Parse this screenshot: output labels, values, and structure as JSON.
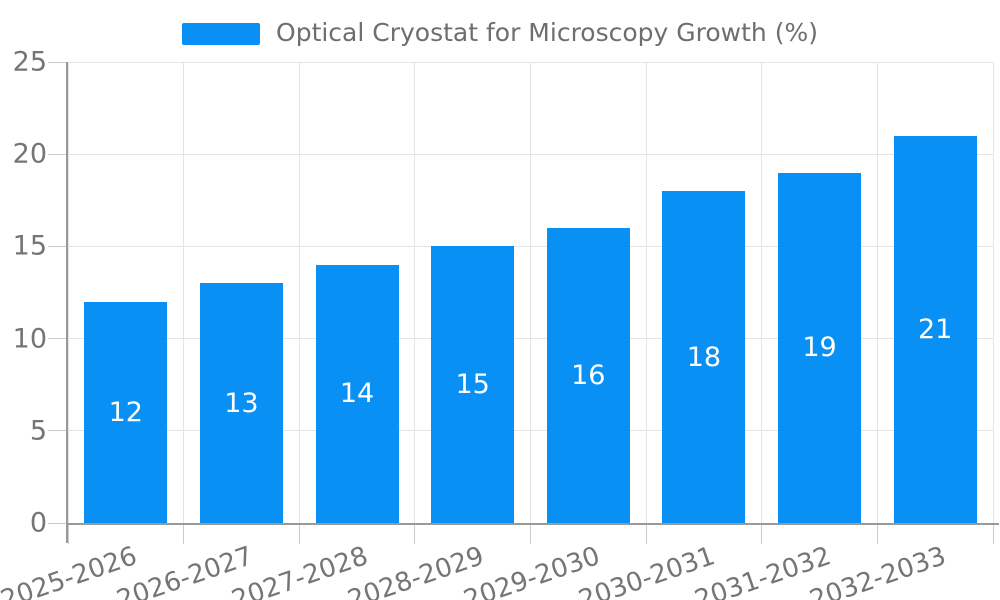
{
  "legend": {
    "label": "Optical Cryostat for Microscopy Growth (%)"
  },
  "chart_data": {
    "type": "bar",
    "title": "",
    "xlabel": "",
    "ylabel": "",
    "categories": [
      "2025-2026",
      "2026-2027",
      "2027-2028",
      "2028-2029",
      "2029-2030",
      "2030-2031",
      "2031-2032",
      "2032-2033"
    ],
    "series": [
      {
        "name": "Optical Cryostat for Microscopy Growth (%)",
        "values": [
          12,
          13,
          14,
          15,
          16,
          18,
          19,
          21
        ]
      }
    ],
    "value_labels": [
      "12",
      "13",
      "14",
      "15",
      "16",
      "18",
      "19",
      "21"
    ],
    "ylim": [
      0,
      25
    ],
    "yticks": [
      0,
      5,
      10,
      15,
      20,
      25
    ],
    "grid": true,
    "legend_position": "top-center",
    "bar_label_position": "inside-center",
    "colors": {
      "bar": "#0890F5",
      "axis": "#999999",
      "grid": "#e5e5e5",
      "tick": "#cccccc",
      "tick_label": "#757575",
      "legend_text": "#6e6e6e",
      "value_label": "#ffffff"
    }
  }
}
